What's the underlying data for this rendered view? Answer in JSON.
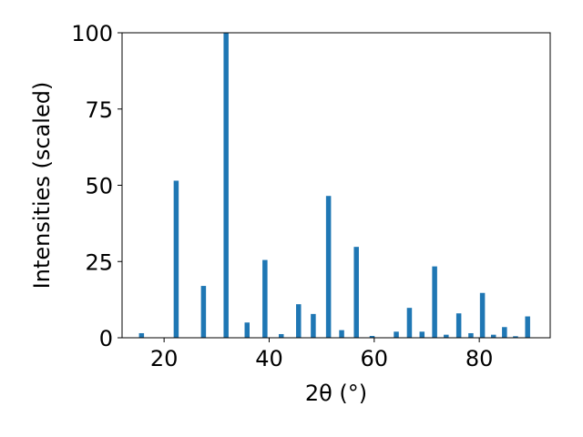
{
  "chart_data": {
    "type": "bar",
    "title": "",
    "xlabel": "2θ (°)",
    "ylabel": "Intensities (scaled)",
    "xlim": [
      12,
      93.5
    ],
    "ylim": [
      0,
      100
    ],
    "xticks": [
      20,
      40,
      60,
      80
    ],
    "yticks": [
      0,
      25,
      50,
      75,
      100
    ],
    "grid": false,
    "bar_color": "#1f77b4",
    "x": [
      15.7,
      22.3,
      27.5,
      31.8,
      35.8,
      39.2,
      42.3,
      45.6,
      48.4,
      51.3,
      53.8,
      56.6,
      59.6,
      64.2,
      66.7,
      69.1,
      71.5,
      73.7,
      76.1,
      78.4,
      80.6,
      82.7,
      84.8,
      86.9,
      89.2
    ],
    "values": [
      1.5,
      51.5,
      17.0,
      100.0,
      5.0,
      25.5,
      1.2,
      11.0,
      7.8,
      46.5,
      2.5,
      29.8,
      0.6,
      2.0,
      9.8,
      2.0,
      23.4,
      1.0,
      8.0,
      1.5,
      14.7,
      1.0,
      3.5,
      0.5,
      7.0
    ]
  }
}
